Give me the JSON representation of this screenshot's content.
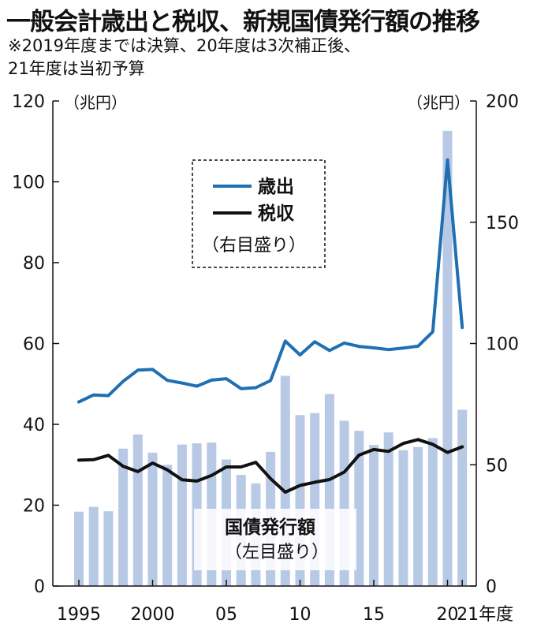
{
  "title": "一般会計歳出と税収、新規国債発行額の推移",
  "subtitle": "※2019年度までは決算、20年度は3次補正後、\n21年度は当初予算",
  "chart_data": {
    "type": "bar+line",
    "left_axis": {
      "unit": "（兆円）",
      "range": [
        0,
        120
      ],
      "ticks": [
        0,
        20,
        40,
        60,
        80,
        100,
        120
      ]
    },
    "right_axis": {
      "unit": "（兆円）",
      "range": [
        0,
        200
      ],
      "ticks": [
        0,
        50,
        100,
        150,
        200
      ]
    },
    "x_axis": {
      "unit": "年度",
      "tick_years": [
        1995,
        2000,
        2005,
        2010,
        2015,
        2020,
        2021
      ],
      "tick_labels": [
        "1995",
        "2000",
        "05",
        "10",
        "15",
        "20",
        "21年度"
      ]
    },
    "years": [
      1995,
      1996,
      1997,
      1998,
      1999,
      2000,
      2001,
      2002,
      2003,
      2004,
      2005,
      2006,
      2007,
      2008,
      2009,
      2010,
      2011,
      2012,
      2013,
      2014,
      2015,
      2016,
      2017,
      2018,
      2019,
      2020,
      2021
    ],
    "series": [
      {
        "name": "国債発行額",
        "axis": "left",
        "type": "bar",
        "color": "#b8c9e6",
        "values": [
          18.4,
          19.6,
          18.5,
          34.0,
          37.5,
          33.0,
          30.0,
          35.0,
          35.3,
          35.5,
          31.3,
          27.5,
          25.4,
          33.2,
          52.0,
          42.3,
          42.8,
          47.5,
          40.9,
          38.4,
          34.9,
          38.0,
          33.6,
          34.4,
          36.6,
          112.6,
          43.6
        ]
      },
      {
        "name": "歳出",
        "axis": "right",
        "type": "line",
        "color": "#1f6fb2",
        "values": [
          75.9,
          78.8,
          78.5,
          84.4,
          89.0,
          89.3,
          84.8,
          83.7,
          82.4,
          84.9,
          85.5,
          81.4,
          81.8,
          84.7,
          101.0,
          95.3,
          100.7,
          97.1,
          100.2,
          98.8,
          98.2,
          97.5,
          98.1,
          98.9,
          104.8,
          175.7,
          106.6
        ]
      },
      {
        "name": "税収",
        "axis": "right",
        "type": "line",
        "color": "#111111",
        "values": [
          51.9,
          52.1,
          53.9,
          49.4,
          47.2,
          50.7,
          47.9,
          43.8,
          43.3,
          45.6,
          49.1,
          49.1,
          51.0,
          44.3,
          38.7,
          41.5,
          42.8,
          43.9,
          47.0,
          54.0,
          56.3,
          55.5,
          58.8,
          60.4,
          58.4,
          55.1,
          57.4
        ]
      }
    ],
    "legend": {
      "top": {
        "items": [
          {
            "label": "歳出",
            "color": "#1f6fb2"
          },
          {
            "label": "税収",
            "color": "#111111"
          }
        ],
        "note": "（右目盛り）"
      },
      "bottom": {
        "label": "国債発行額",
        "note": "（左目盛り）"
      }
    }
  }
}
